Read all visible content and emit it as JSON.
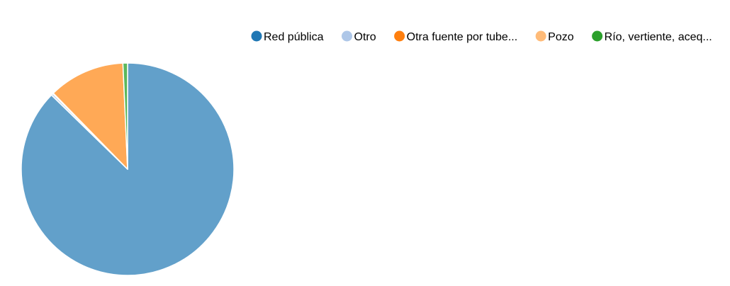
{
  "chart_data": {
    "type": "pie",
    "legend_position": "top-right",
    "series": [
      {
        "name": "Red pública",
        "value": 87.3,
        "legend_color": "#1f77b4",
        "slice_color": "#62a0ca"
      },
      {
        "name": "Otro",
        "value": 0.3,
        "legend_color": "#aec7e8",
        "slice_color": "#c1d4ec"
      },
      {
        "name": "Otra fuente por tube...",
        "value": 0.1,
        "legend_color": "#ff7f0e",
        "slice_color": "#ffa04a"
      },
      {
        "name": "Pozo",
        "value": 11.6,
        "legend_color": "#ffbb78",
        "slice_color": "#ffa956"
      },
      {
        "name": "Río, vertiente, aceq...",
        "value": 0.7,
        "legend_color": "#2ca02c",
        "slice_color": "#5cb85c"
      }
    ]
  }
}
